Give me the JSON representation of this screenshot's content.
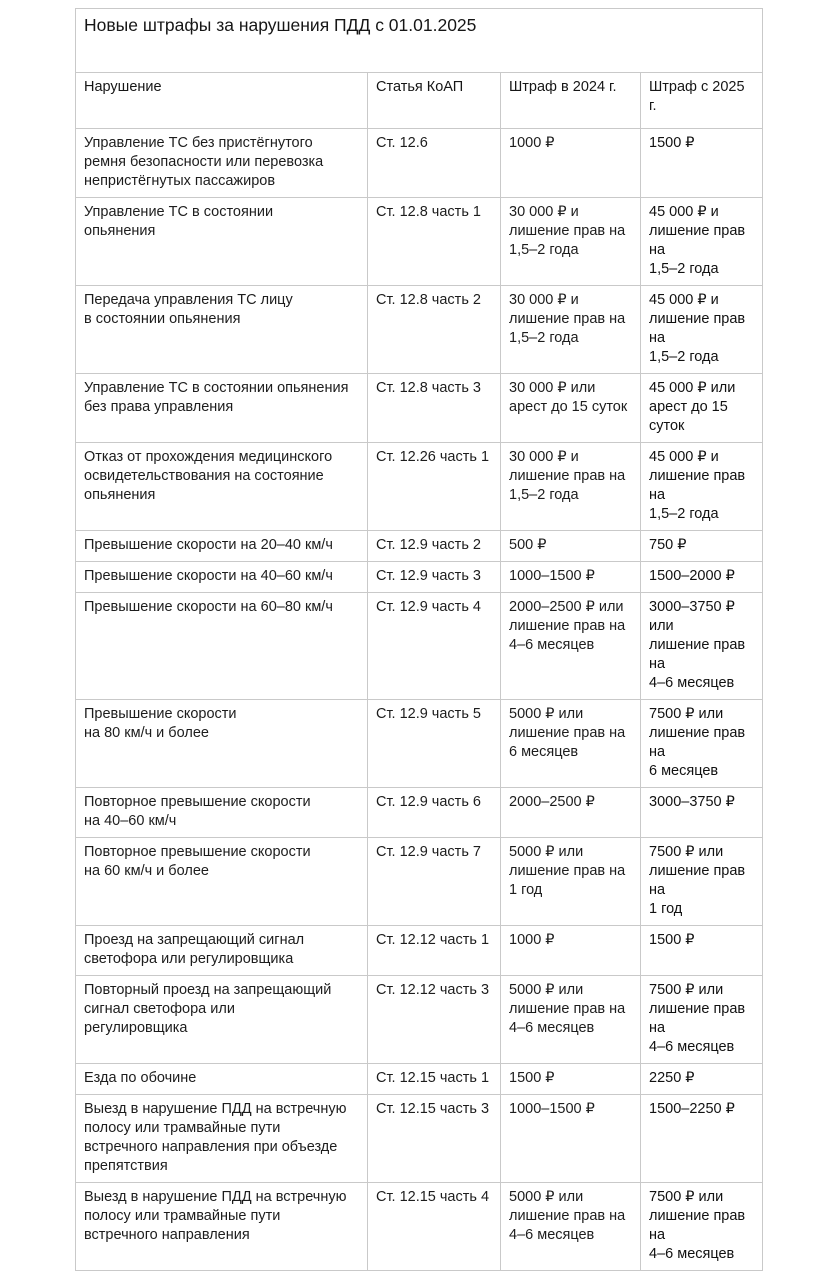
{
  "title": "Новые штрафы за нарушения ПДД с 01.01.2025",
  "table": {
    "headers": [
      "Нарушение",
      "Статья КоАП",
      "Штраф в 2024 г.",
      "Штраф с 2025 г."
    ],
    "rows": [
      {
        "violation": "Управление ТС без пристёгнутого\nремня безопасности или перевозка\nнепристёгнутых пассажиров",
        "article": "Ст. 12.6",
        "fine_2024": "1000 ₽",
        "fine_2025": "1500 ₽"
      },
      {
        "violation": "Управление ТС в состоянии\nопьянения",
        "article": "Ст. 12.8 часть 1",
        "fine_2024": "30 000 ₽ и\nлишение прав на\n1,5–2 года",
        "fine_2025": "45 000 ₽ и\nлишение прав на\n1,5–2 года"
      },
      {
        "violation": "Передача управления ТС лицу\nв состоянии опьянения",
        "article": "Ст. 12.8 часть 2",
        "fine_2024": "30 000 ₽ и\nлишение прав на\n1,5–2 года",
        "fine_2025": "45 000 ₽ и\nлишение прав на\n1,5–2 года"
      },
      {
        "violation": "Управление ТС в состоянии опьянения\nбез права управления",
        "article": "Ст. 12.8 часть 3",
        "fine_2024": "30 000 ₽ или\nарест до 15 суток",
        "fine_2025": "45 000 ₽ или\nарест до 15\nсуток"
      },
      {
        "violation": "Отказ от прохождения медицинского\nосвидетельствования на состояние\nопьянения",
        "article": "Ст. 12.26 часть 1",
        "fine_2024": "30 000 ₽ и\nлишение прав на\n1,5–2 года",
        "fine_2025": "45 000 ₽ и\nлишение прав на\n1,5–2 года"
      },
      {
        "violation": "Превышение скорости на 20–40 км/ч",
        "article": "Ст. 12.9 часть 2",
        "fine_2024": "500 ₽",
        "fine_2025": "750 ₽"
      },
      {
        "violation": "Превышение скорости на 40–60 км/ч",
        "article": "Ст. 12.9 часть 3",
        "fine_2024": "1000–1500 ₽",
        "fine_2025": "1500–2000 ₽"
      },
      {
        "violation": "Превышение скорости на 60–80 км/ч",
        "article": "Ст. 12.9 часть 4",
        "fine_2024": "2000–2500 ₽ или\nлишение прав на\n4–6 месяцев",
        "fine_2025": "3000–3750 ₽ или\nлишение прав на\n4–6 месяцев"
      },
      {
        "violation": "Превышение скорости\nна 80 км/ч и более",
        "article": "Ст. 12.9 часть 5",
        "fine_2024": "5000 ₽ или\nлишение прав на\n6 месяцев",
        "fine_2025": "7500 ₽ или\nлишение прав на\n6 месяцев"
      },
      {
        "violation": "Повторное превышение скорости\nна 40–60 км/ч",
        "article": "Ст. 12.9 часть 6",
        "fine_2024": "2000–2500 ₽",
        "fine_2025": "3000–3750 ₽"
      },
      {
        "violation": "Повторное превышение скорости\nна 60 км/ч и более",
        "article": "Ст. 12.9 часть 7",
        "fine_2024": "5000 ₽ или\nлишение прав на\n1 год",
        "fine_2025": "7500 ₽ или\nлишение прав на\n1 год"
      },
      {
        "violation": "Проезд на запрещающий сигнал\nсветофора или регулировщика",
        "article": "Ст. 12.12 часть 1",
        "fine_2024": "1000 ₽",
        "fine_2025": "1500 ₽"
      },
      {
        "violation": "Повторный проезд на запрещающий\nсигнал светофора или\nрегулировщика",
        "article": "Ст. 12.12 часть 3",
        "fine_2024": "5000 ₽ или\nлишение прав на\n4–6 месяцев",
        "fine_2025": "7500 ₽ или\nлишение прав на\n4–6 месяцев"
      },
      {
        "violation": "Езда по обочине",
        "article": "Ст. 12.15 часть 1",
        "fine_2024": "1500 ₽",
        "fine_2025": "2250 ₽"
      },
      {
        "violation": "Выезд в нарушение ПДД на встречную\nполосу или трамвайные пути\nвстречного направления при объезде\nпрепятствия",
        "article": "Ст. 12.15 часть 3",
        "fine_2024": "1000–1500 ₽",
        "fine_2025": "1500–2250 ₽"
      },
      {
        "violation": "Выезд в нарушение ПДД на встречную\nполосу или трамвайные пути\nвстречного направления",
        "article": "Ст. 12.15 часть 4",
        "fine_2024": "5000 ₽ или\nлишение прав на\n4–6 месяцев",
        "fine_2025": "7500 ₽ или\nлишение прав на\n4–6 месяцев"
      }
    ]
  }
}
